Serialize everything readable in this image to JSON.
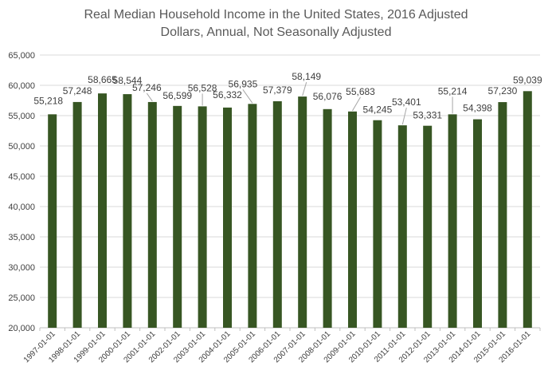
{
  "chart_data": {
    "type": "bar",
    "title_lines": [
      "Real Median Household Income in the United States, 2016 Adjusted",
      "Dollars, Annual, Not Seasonally Adjusted"
    ],
    "xlabel": "",
    "ylabel": "",
    "ylim": [
      20000,
      65000
    ],
    "yticks": [
      20000,
      25000,
      30000,
      35000,
      40000,
      45000,
      50000,
      55000,
      60000,
      65000
    ],
    "ytick_labels": [
      "20,000",
      "25,000",
      "30,000",
      "35,000",
      "40,000",
      "45,000",
      "50,000",
      "55,000",
      "60,000",
      "65,000"
    ],
    "grid": true,
    "legend": "none",
    "categories": [
      "1997-01-01",
      "1998-01-01",
      "1999-01-01",
      "2000-01-01",
      "2001-01-01",
      "2002-01-01",
      "2003-01-01",
      "2004-01-01",
      "2005-01-01",
      "2006-01-01",
      "2007-01-01",
      "2008-01-01",
      "2009-01-01",
      "2010-01-01",
      "2011-01-01",
      "2012-01-01",
      "2013-01-01",
      "2014-01-01",
      "2015-01-01",
      "2016-01-01"
    ],
    "values": [
      55218,
      57248,
      58665,
      58544,
      57246,
      56599,
      56528,
      56332,
      56935,
      57379,
      58149,
      56076,
      55683,
      54245,
      53401,
      53331,
      55214,
      54398,
      57230,
      59039
    ],
    "value_labels": [
      "55,218",
      "57,248",
      "58,665",
      "58,544",
      "57,246",
      "56,599",
      "56,528",
      "56,332",
      "56,935",
      "57,379",
      "58,149",
      "56,076",
      "55,683",
      "54,245",
      "53,401",
      "53,331",
      "55,214",
      "54,398",
      "57,230",
      "59,039"
    ],
    "colors": {
      "bar": "#375623",
      "grid": "#d9d9d9",
      "text": "#404040",
      "title": "#595959",
      "leader": "#a6a6a6"
    }
  }
}
